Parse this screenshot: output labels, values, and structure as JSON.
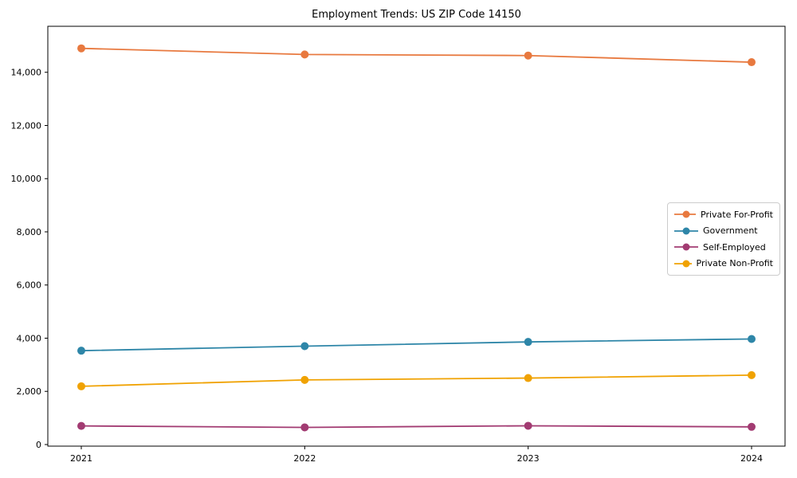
{
  "chart_data": {
    "type": "line",
    "title": "Employment Trends: US ZIP Code 14150",
    "xlabel": "",
    "ylabel": "",
    "x": [
      2021,
      2022,
      2023,
      2024
    ],
    "xtick_labels": [
      "2021",
      "2022",
      "2023",
      "2024"
    ],
    "yticks": [
      0,
      2000,
      4000,
      6000,
      8000,
      10000,
      12000,
      14000
    ],
    "ytick_labels": [
      "0",
      "2,000",
      "4,000",
      "6,000",
      "8,000",
      "10,000",
      "12,000",
      "14,000"
    ],
    "ylim": [
      -60,
      15730
    ],
    "grid": false,
    "legend_position": "center right",
    "marker": "circle",
    "series": [
      {
        "name": "Private For-Profit",
        "color": "#E8793F",
        "values": [
          14900,
          14670,
          14630,
          14380
        ]
      },
      {
        "name": "Government",
        "color": "#2E86A8",
        "values": [
          3530,
          3700,
          3860,
          3970
        ]
      },
      {
        "name": "Self-Employed",
        "color": "#A23B72",
        "values": [
          700,
          645,
          705,
          665
        ]
      },
      {
        "name": "Private Non-Profit",
        "color": "#F0A202",
        "values": [
          2190,
          2430,
          2500,
          2610
        ]
      }
    ],
    "axis_color": "#000000",
    "legend_border_color": "#cccccc"
  }
}
